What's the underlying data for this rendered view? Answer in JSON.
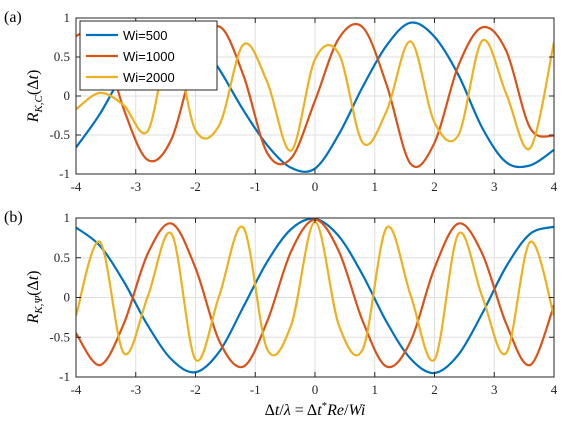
{
  "chart_data": [
    {
      "type": "line",
      "panel_label": "(a)",
      "ylabel": "R_{K,C}(Δt)",
      "xlim": [
        -4,
        4
      ],
      "ylim": [
        -1,
        1
      ],
      "xticks": [
        "-4",
        "-3",
        "-2",
        "-1",
        "0",
        "1",
        "2",
        "3",
        "4"
      ],
      "yticks": [
        "-1",
        "-0.5",
        "0",
        "0.5",
        "1"
      ],
      "grid": true,
      "legend": "top-left",
      "series": [
        {
          "name": "Wi=500",
          "color": "#0072BD",
          "x": [
            -4.0,
            -3.6,
            -3.2,
            -2.8,
            -2.4,
            -2.0,
            -1.6,
            -1.2,
            -0.8,
            -0.4,
            0.0,
            0.4,
            0.8,
            1.2,
            1.6,
            2.0,
            2.4,
            2.8,
            3.2,
            3.6,
            4.0
          ],
          "y": [
            -0.66,
            -0.23,
            0.31,
            0.75,
            0.94,
            0.77,
            0.34,
            -0.18,
            -0.63,
            -0.92,
            -0.93,
            -0.49,
            0.12,
            0.65,
            0.94,
            0.76,
            0.27,
            -0.41,
            -0.85,
            -0.89,
            -0.69
          ]
        },
        {
          "name": "Wi=1000",
          "color": "#D95319",
          "x": [
            -4.0,
            -3.6,
            -3.2,
            -2.8,
            -2.4,
            -2.0,
            -1.6,
            -1.2,
            -0.8,
            -0.4,
            0.0,
            0.4,
            0.8,
            1.2,
            1.6,
            2.0,
            2.4,
            2.8,
            3.2,
            3.6,
            4.0
          ],
          "y": [
            0.77,
            0.81,
            -0.17,
            -0.82,
            -0.55,
            0.49,
            0.89,
            0.27,
            -0.73,
            -0.8,
            -0.06,
            0.74,
            0.88,
            0.14,
            -0.87,
            -0.6,
            0.39,
            0.88,
            0.58,
            -0.41,
            -0.51
          ]
        },
        {
          "name": "Wi=2000",
          "color": "#EDB120",
          "x": [
            -4.0,
            -3.6,
            -3.2,
            -2.8,
            -2.4,
            -2.0,
            -1.6,
            -1.2,
            -0.8,
            -0.4,
            0.0,
            0.4,
            0.8,
            1.2,
            1.6,
            2.0,
            2.4,
            2.8,
            3.2,
            3.6,
            4.0
          ],
          "y": [
            -0.17,
            0.04,
            -0.12,
            -0.45,
            0.7,
            -0.44,
            -0.37,
            0.66,
            0.18,
            -0.7,
            0.47,
            0.54,
            -0.6,
            -0.19,
            0.7,
            -0.34,
            -0.5,
            0.71,
            0.03,
            -0.67,
            0.69
          ]
        }
      ]
    },
    {
      "type": "line",
      "panel_label": "(b)",
      "ylabel": "R_{K,Ψ}(Δt)",
      "xlabel": "Δt/λ = Δt*Re/Wi",
      "xlim": [
        -4,
        4
      ],
      "ylim": [
        -1,
        1
      ],
      "xticks": [
        "-4",
        "-3",
        "-2",
        "-1",
        "0",
        "1",
        "2",
        "3",
        "4"
      ],
      "yticks": [
        "-1",
        "-0.5",
        "0",
        "0.5",
        "1"
      ],
      "grid": true,
      "series": [
        {
          "name": "Wi=500",
          "color": "#0072BD",
          "x": [
            -4.0,
            -3.6,
            -3.2,
            -2.8,
            -2.4,
            -2.0,
            -1.6,
            -1.2,
            -0.8,
            -0.4,
            0.0,
            0.4,
            0.8,
            1.2,
            1.6,
            2.0,
            2.4,
            2.8,
            3.2,
            3.6,
            4.0
          ],
          "y": [
            0.88,
            0.65,
            0.2,
            -0.35,
            -0.78,
            -0.94,
            -0.68,
            -0.12,
            0.45,
            0.86,
            0.99,
            0.77,
            0.28,
            -0.31,
            -0.77,
            -0.95,
            -0.72,
            -0.2,
            0.39,
            0.8,
            0.89
          ]
        },
        {
          "name": "Wi=1000",
          "color": "#D95319",
          "x": [
            -4.0,
            -3.6,
            -3.2,
            -2.8,
            -2.4,
            -2.0,
            -1.6,
            -1.2,
            -0.8,
            -0.4,
            0.0,
            0.4,
            0.8,
            1.2,
            1.6,
            2.0,
            2.4,
            2.8,
            3.2,
            3.6,
            4.0
          ],
          "y": [
            -0.45,
            -0.85,
            -0.33,
            0.55,
            0.93,
            0.37,
            -0.55,
            -0.87,
            -0.3,
            0.58,
            0.98,
            0.58,
            -0.3,
            -0.87,
            -0.55,
            0.37,
            0.93,
            0.55,
            -0.33,
            -0.85,
            -0.1
          ]
        },
        {
          "name": "Wi=2000",
          "color": "#EDB120",
          "x": [
            -4.0,
            -3.6,
            -3.2,
            -2.8,
            -2.4,
            -2.0,
            -1.6,
            -1.2,
            -0.8,
            -0.4,
            0.0,
            0.4,
            0.8,
            1.2,
            1.6,
            2.0,
            2.4,
            2.8,
            3.2,
            3.6,
            4.0
          ],
          "y": [
            -0.23,
            0.7,
            -0.7,
            0.01,
            0.8,
            -0.78,
            0.03,
            0.88,
            -0.65,
            -0.35,
            0.95,
            -0.35,
            -0.65,
            0.88,
            0.03,
            -0.78,
            0.8,
            0.01,
            -0.7,
            0.7,
            -0.23
          ]
        }
      ]
    }
  ]
}
